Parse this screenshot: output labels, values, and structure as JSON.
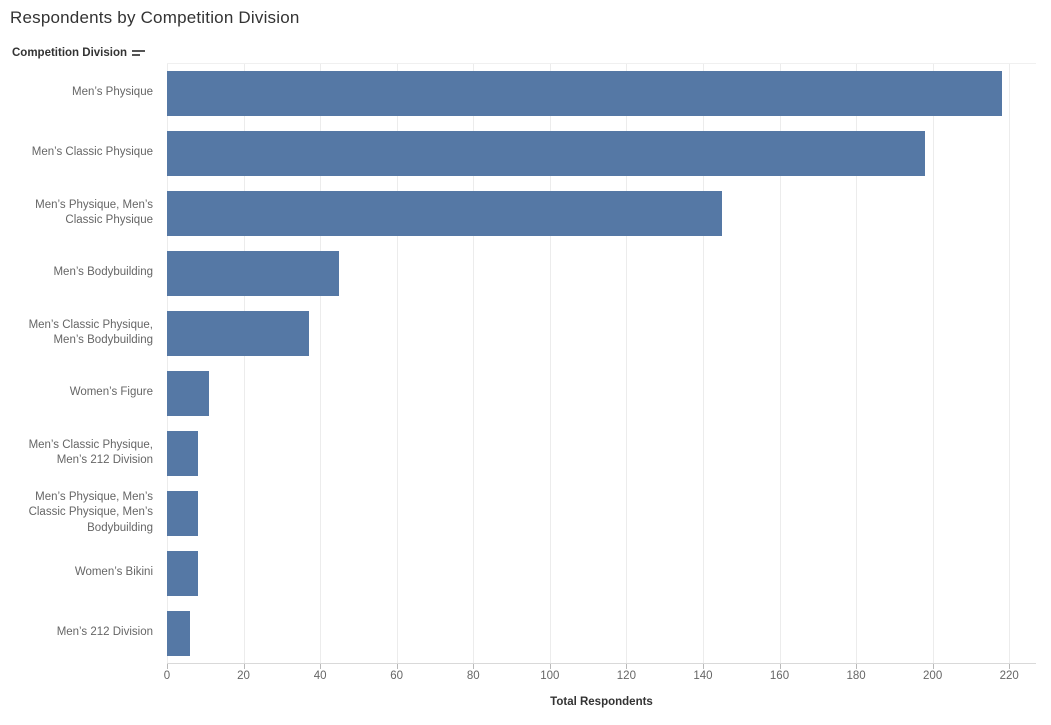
{
  "title": "Respondents by Competition Division",
  "header": {
    "field_label": "Competition Division",
    "sort_icon": "sort-descending-icon"
  },
  "axis": {
    "title": "Total Respondents",
    "ticks": [
      0,
      20,
      40,
      60,
      80,
      100,
      120,
      140,
      160,
      180,
      200,
      220
    ],
    "max": 227
  },
  "chart_data": {
    "type": "bar",
    "orientation": "horizontal",
    "title": "Respondents by Competition Division",
    "xlabel": "Total Respondents",
    "ylabel": "Competition Division",
    "categories": [
      "Men’s Physique",
      "Men’s Classic Physique",
      "Men’s Physique, Men’s Classic Physique",
      "Men’s Bodybuilding",
      "Men’s Classic Physique, Men’s Bodybuilding",
      "Women’s Figure",
      "Men’s Classic Physique, Men’s 212 Division",
      "Men’s Physique, Men’s Classic Physique, Men’s Bodybuilding",
      "Women’s Bikini",
      "Men’s 212 Division"
    ],
    "values": [
      218,
      198,
      145,
      45,
      37,
      11,
      8,
      8,
      8,
      6
    ],
    "xlim": [
      0,
      227
    ],
    "grid": true,
    "legend": false,
    "bar_color": "#5578a5"
  },
  "colors": {
    "bar": "#5578a5",
    "gridline": "#ececec",
    "axis_line": "#d9d9d9",
    "tick_mark": "#b9b9b9",
    "tick_label": "#666666",
    "category_label": "#666666",
    "title_text": "#333333"
  }
}
